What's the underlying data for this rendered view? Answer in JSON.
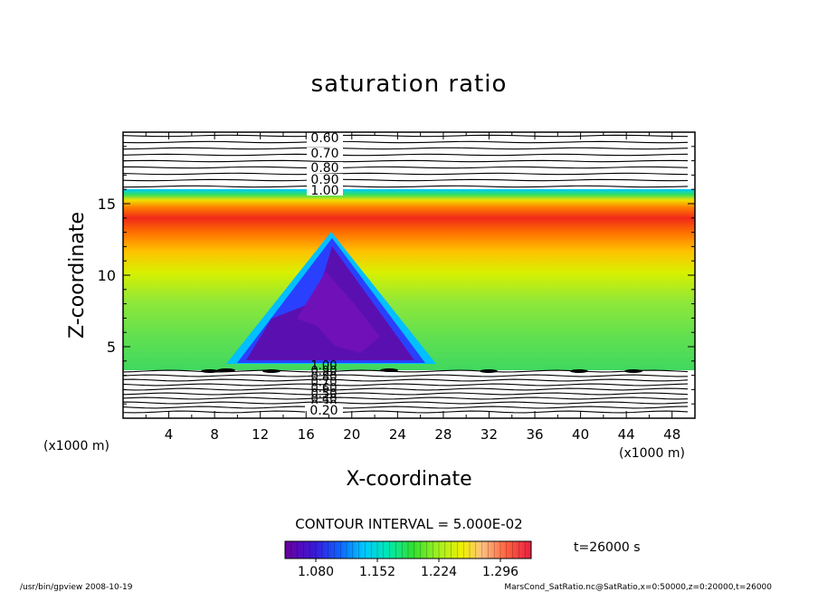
{
  "chart_data": {
    "type": "contour",
    "title": "saturation ratio",
    "xlabel": "X-coordinate",
    "ylabel": "Z-coordinate",
    "x_unit_left": "(x1000 m)",
    "x_unit_right": "(x1000 m)",
    "xlim": [
      0,
      50
    ],
    "ylim": [
      0,
      20
    ],
    "x_ticks": [
      "4",
      "8",
      "12",
      "16",
      "20",
      "24",
      "28",
      "32",
      "36",
      "40",
      "44",
      "48"
    ],
    "y_ticks": [
      "5",
      "10",
      "15"
    ],
    "upper_contour_labels": [
      "0.60",
      "0.70",
      "0.80",
      "0.90",
      "1.00"
    ],
    "lower_contour_labels": [
      "0.20",
      "0.30",
      "0.40",
      "0.50",
      "0.60",
      "0.70",
      "0.80",
      "0.90",
      "1.00"
    ],
    "colorbar_ticks": [
      "1.080",
      "1.152",
      "1.224",
      "1.296"
    ],
    "colorbar_range": [
      1.044,
      1.332
    ],
    "contour_interval_text": "CONTOUR INTERVAL = 5.000E-02",
    "time_text": "t=26000 s",
    "colormap": [
      "#5a009a",
      "#2020ff",
      "#00b0ff",
      "#00e8c0",
      "#30e030",
      "#a8f020",
      "#f0f000",
      "#ffb000",
      "#ff6000",
      "#e82020"
    ],
    "features": {
      "mountain_apex": [
        18,
        12.8
      ],
      "mountain_base_x": [
        9,
        27
      ],
      "saturated_layer_z": [
        3.7,
        16
      ],
      "max_ratio_band_z": 14.5
    }
  },
  "footer": {
    "left": "/usr/bin/gpview   2008-10-19",
    "right": "MarsCond_SatRatio.nc@SatRatio,x=0:50000,z=0:20000,t=26000"
  }
}
